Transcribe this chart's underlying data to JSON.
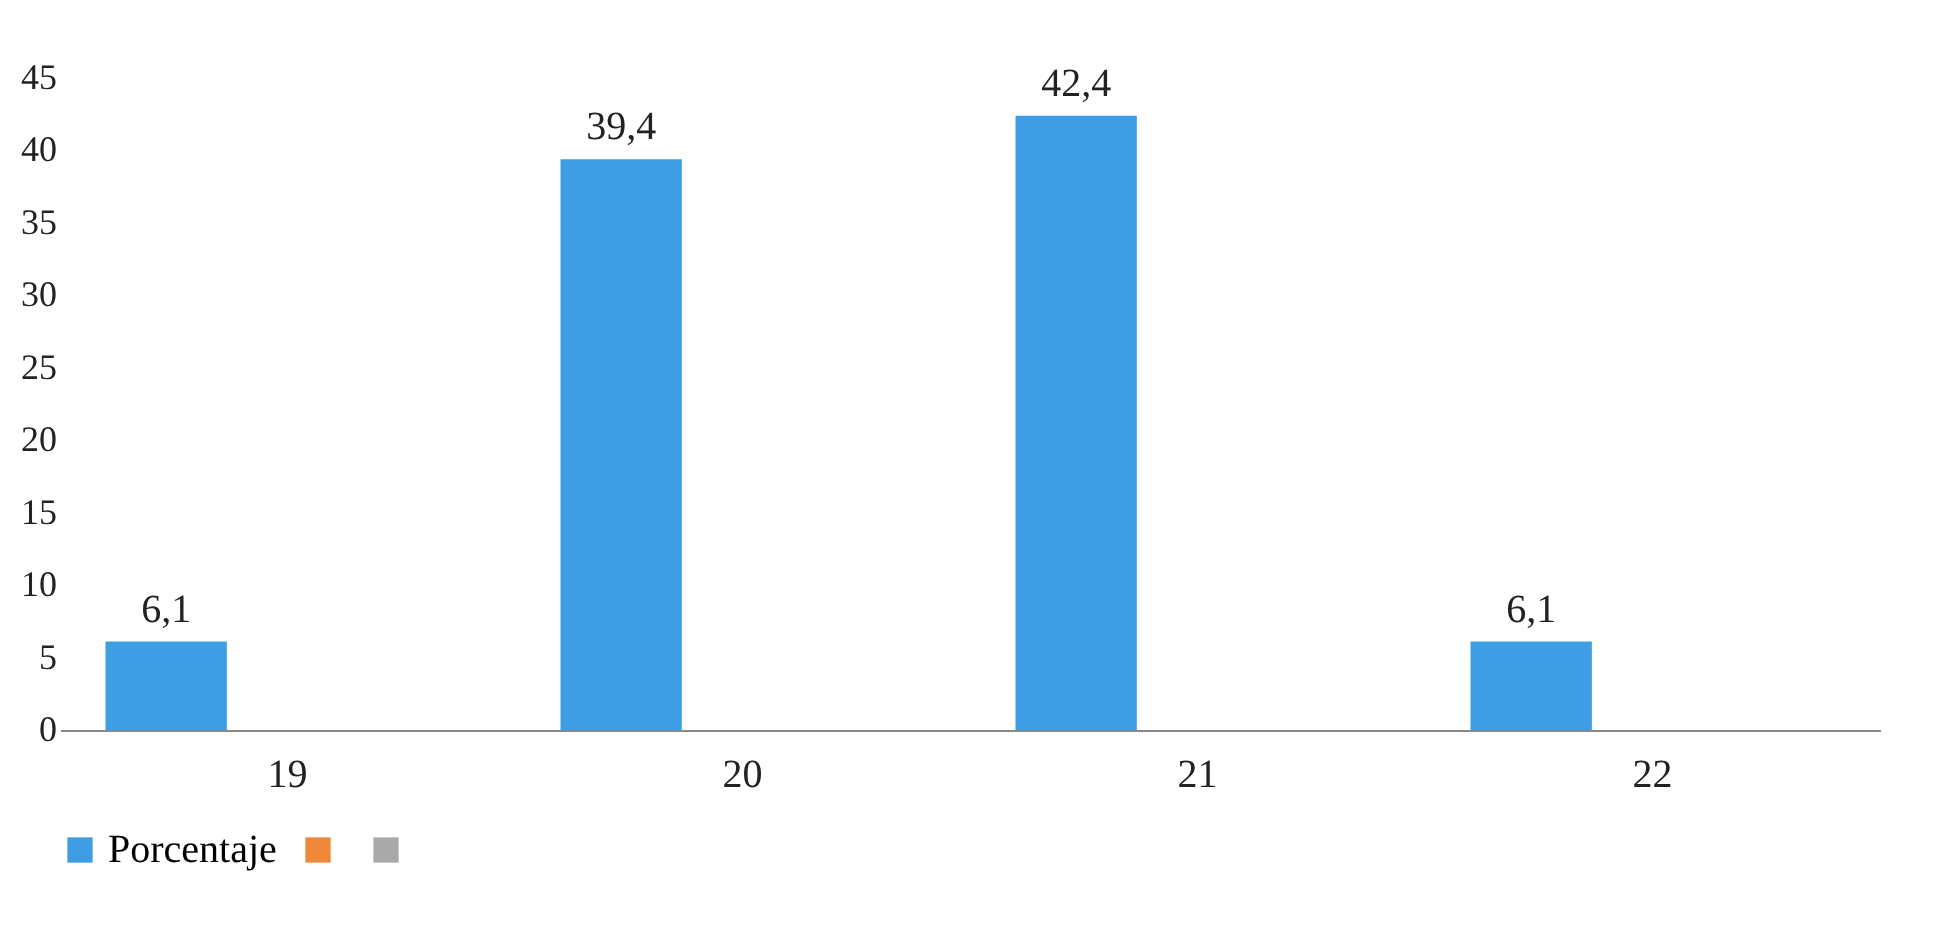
{
  "chart_data": {
    "type": "bar",
    "categories": [
      "19",
      "20",
      "21",
      "22"
    ],
    "series": [
      {
        "name": "Porcentaje",
        "color": "#3f9de3",
        "values": [
          6.1,
          39.4,
          42.4,
          6.1
        ],
        "value_labels": [
          "6,1",
          "39,4",
          "42,4",
          "6,1"
        ]
      },
      {
        "color": "#f0883a",
        "values": [
          null,
          null,
          null,
          null
        ]
      },
      {
        "color": "#a9a9a9",
        "values": [
          null,
          null,
          null,
          null
        ]
      }
    ],
    "ylim": [
      0,
      45
    ],
    "yticks": [
      0,
      5,
      10,
      15,
      20,
      25,
      30,
      35,
      40,
      45
    ],
    "grid": false,
    "legend": "bottom"
  }
}
